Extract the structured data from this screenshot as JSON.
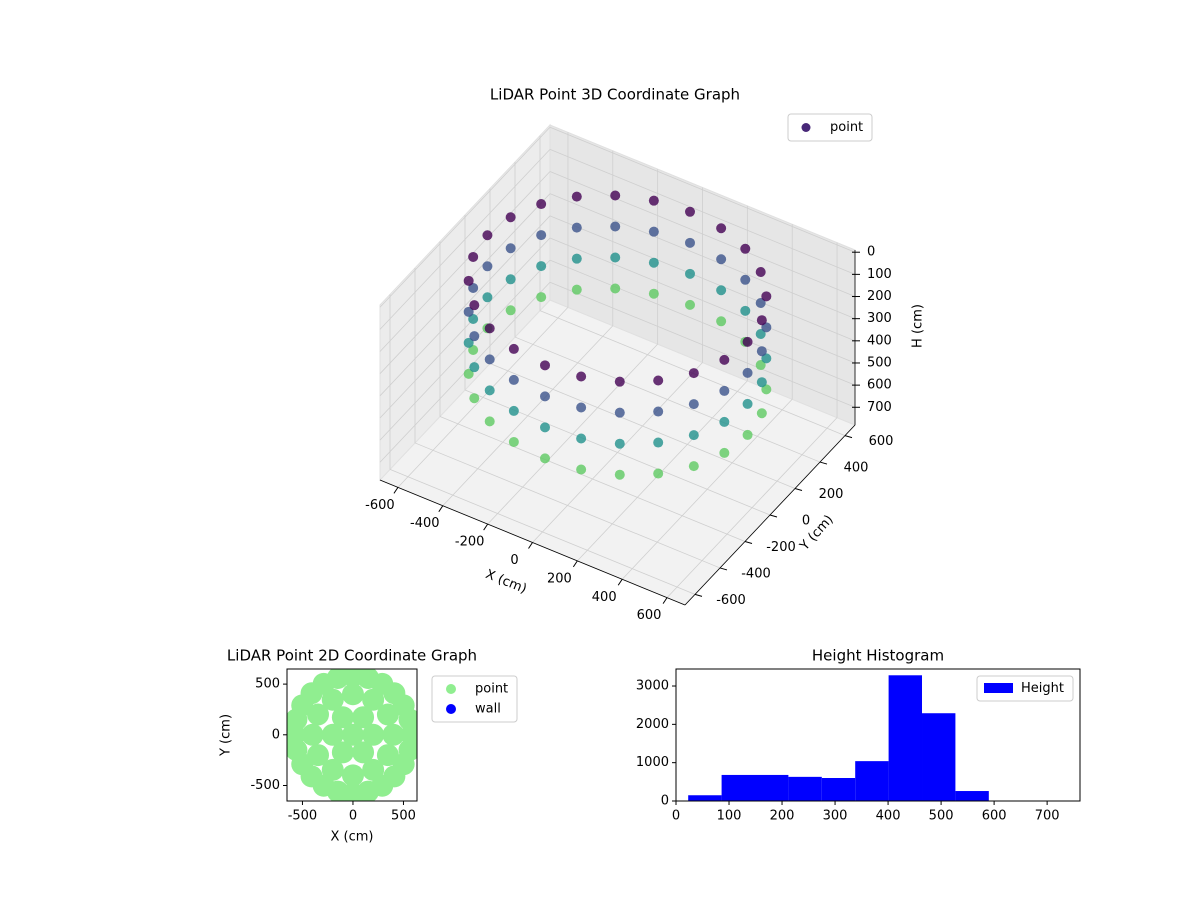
{
  "chart_data": [
    {
      "type": "scatter3d",
      "title": "LiDAR Point 3D Coordinate Graph",
      "xlabel": "X (cm)",
      "ylabel": "Y (cm)",
      "zlabel": "H (cm)",
      "xlim": [
        -680,
        680
      ],
      "ylim": [
        -680,
        680
      ],
      "zlim": [
        780,
        -10
      ],
      "xticks": [
        -600,
        -400,
        -200,
        0,
        200,
        400,
        600
      ],
      "yticks": [
        -600,
        -400,
        -200,
        0,
        200,
        400,
        600
      ],
      "zticks": [
        0,
        100,
        200,
        300,
        400,
        500,
        600,
        700
      ],
      "grid": true,
      "colormap": "viridis",
      "legend": "upper right",
      "series": [
        {
          "name": "point",
          "color": "#482878",
          "x": [
            580,
            560,
            502,
            410,
            290,
            150,
            0,
            -150,
            -290,
            -410,
            -502,
            -560,
            -580,
            -560,
            -502,
            -410,
            -290,
            -150,
            0,
            150,
            290,
            410,
            502,
            560,
            580,
            560,
            502,
            410,
            290,
            150,
            0,
            -150,
            -290,
            -410,
            -502,
            -560,
            -580,
            -560,
            -502,
            -410,
            -290,
            -150,
            0,
            150,
            290,
            410,
            502,
            560,
            580,
            560,
            502,
            410,
            290,
            150,
            0,
            -150,
            -290,
            -410,
            -502,
            -560,
            -580,
            -560,
            -502,
            -410,
            -290,
            -150,
            0,
            150,
            290,
            410,
            502,
            560,
            580,
            560,
            502,
            410,
            290,
            150,
            0,
            -150,
            -290,
            -410,
            -502,
            -560,
            -580,
            -560,
            -502,
            -410,
            -290,
            -150,
            0,
            150,
            290,
            410,
            502,
            560
          ],
          "y": [
            0,
            150,
            290,
            410,
            502,
            560,
            580,
            560,
            502,
            410,
            290,
            150,
            0,
            -150,
            -290,
            -410,
            -502,
            -560,
            -580,
            -560,
            -502,
            -410,
            -290,
            -150,
            0,
            150,
            290,
            410,
            502,
            560,
            580,
            560,
            502,
            410,
            290,
            150,
            0,
            -150,
            -290,
            -410,
            -502,
            -560,
            -580,
            -560,
            -502,
            -410,
            -290,
            -150,
            0,
            150,
            290,
            410,
            502,
            560,
            580,
            560,
            502,
            410,
            290,
            150,
            0,
            -150,
            -290,
            -410,
            -502,
            -560,
            -580,
            -560,
            -502,
            -410,
            -290,
            -150,
            0,
            150,
            290,
            410,
            502,
            560,
            580,
            560,
            502,
            410,
            290,
            150,
            0,
            -150,
            -290,
            -410,
            -502,
            -560,
            -580,
            -560,
            -502,
            -410,
            -290,
            -150
          ],
          "h": [
            40,
            40,
            40,
            40,
            40,
            40,
            40,
            40,
            40,
            40,
            40,
            40,
            40,
            40,
            40,
            40,
            40,
            40,
            40,
            40,
            40,
            40,
            40,
            40,
            180,
            180,
            180,
            180,
            180,
            180,
            180,
            180,
            180,
            180,
            180,
            180,
            180,
            180,
            180,
            180,
            180,
            180,
            180,
            180,
            180,
            180,
            180,
            180,
            320,
            320,
            320,
            320,
            320,
            320,
            320,
            320,
            320,
            320,
            320,
            320,
            320,
            320,
            320,
            320,
            320,
            320,
            320,
            320,
            320,
            320,
            320,
            320,
            460,
            460,
            460,
            460,
            460,
            460,
            460,
            460,
            460,
            460,
            460,
            460,
            460,
            460,
            460,
            460,
            460,
            460,
            460,
            460,
            460,
            460,
            460,
            460
          ]
        }
      ]
    },
    {
      "type": "scatter",
      "title": "LiDAR Point 2D Coordinate Graph",
      "xlabel": "X (cm)",
      "ylabel": "Y (cm)",
      "xlim": [
        -653,
        634
      ],
      "ylim": [
        -653,
        649
      ],
      "xticks": [
        -500,
        0,
        500
      ],
      "yticks": [
        -500,
        0,
        500
      ],
      "legend": "outside right",
      "series": [
        {
          "name": "point",
          "color": "#90ee90",
          "x": [
            580,
            560,
            502,
            410,
            290,
            150,
            0,
            -150,
            -290,
            -410,
            -502,
            -560,
            -580,
            -560,
            -502,
            -410,
            -290,
            -150,
            0,
            150,
            290,
            410,
            502,
            560,
            400,
            346,
            200,
            0,
            -200,
            -346,
            -400,
            -346,
            -200,
            0,
            200,
            346,
            200,
            100,
            -100,
            -200,
            -100,
            100,
            0
          ],
          "y": [
            0,
            150,
            290,
            410,
            502,
            560,
            580,
            560,
            502,
            410,
            290,
            150,
            0,
            -150,
            -290,
            -410,
            -502,
            -560,
            -580,
            -560,
            -502,
            -410,
            -290,
            -150,
            0,
            200,
            346,
            400,
            346,
            200,
            0,
            -200,
            -346,
            -400,
            -346,
            -200,
            0,
            173,
            173,
            0,
            -173,
            -173,
            0
          ]
        },
        {
          "name": "wall",
          "color": "#0000ff",
          "x": [],
          "y": []
        }
      ]
    },
    {
      "type": "histogram",
      "title": "Height Histogram",
      "xlim": [
        0,
        762
      ],
      "ylim": [
        0,
        3444
      ],
      "xticks": [
        0,
        100,
        200,
        300,
        400,
        500,
        600,
        700
      ],
      "yticks": [
        0,
        1000,
        2000,
        3000
      ],
      "legend": "upper right",
      "series": [
        {
          "name": "Height",
          "color": "#0000ff",
          "bins": [
            23,
            86,
            149,
            212,
            275,
            338,
            401,
            464,
            527,
            590,
            653
          ],
          "values": [
            150,
            680,
            680,
            630,
            600,
            1040,
            3280,
            2290,
            260,
            5
          ]
        }
      ]
    }
  ]
}
